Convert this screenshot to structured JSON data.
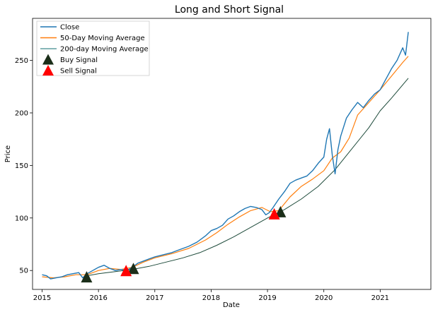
{
  "chart_data": {
    "type": "line",
    "title": "Long and Short Signal",
    "xlabel": "Date",
    "ylabel": "Price",
    "xlim": [
      2014.83,
      2021.9
    ],
    "ylim": [
      32,
      290
    ],
    "x_ticks": [
      "2015",
      "2016",
      "2017",
      "2018",
      "2019",
      "2020",
      "2021"
    ],
    "y_ticks": [
      50,
      100,
      150,
      200,
      250
    ],
    "grid": false,
    "legend_position": "top-left",
    "legend": [
      "Close",
      "50-Day Moving Average",
      "200-day Moving Average",
      "Buy Signal",
      "Sell Signal"
    ],
    "series": [
      {
        "name": "Close",
        "color": "#1f77b4",
        "x": [
          2015.0,
          2015.08,
          2015.15,
          2015.25,
          2015.35,
          2015.45,
          2015.55,
          2015.65,
          2015.72,
          2015.8,
          2015.9,
          2016.0,
          2016.1,
          2016.2,
          2016.3,
          2016.4,
          2016.5,
          2016.6,
          2016.7,
          2016.8,
          2016.9,
          2017.0,
          2017.15,
          2017.3,
          2017.45,
          2017.6,
          2017.75,
          2017.9,
          2018.0,
          2018.1,
          2018.2,
          2018.3,
          2018.4,
          2018.5,
          2018.6,
          2018.7,
          2018.8,
          2018.9,
          2018.97,
          2019.03,
          2019.1,
          2019.2,
          2019.3,
          2019.4,
          2019.5,
          2019.6,
          2019.7,
          2019.8,
          2019.9,
          2020.0,
          2020.05,
          2020.1,
          2020.15,
          2020.2,
          2020.25,
          2020.3,
          2020.4,
          2020.5,
          2020.6,
          2020.7,
          2020.8,
          2020.9,
          2021.0,
          2021.1,
          2021.2,
          2021.3,
          2021.4,
          2021.45,
          2021.5
        ],
        "values": [
          46,
          45,
          42,
          43,
          44,
          46,
          47,
          48,
          43,
          47,
          50,
          53,
          55,
          52,
          50,
          51,
          50,
          53,
          57,
          59,
          61,
          63,
          65,
          67,
          70,
          73,
          77,
          83,
          88,
          90,
          93,
          99,
          102,
          106,
          109,
          111,
          110,
          108,
          103,
          105,
          110,
          118,
          125,
          133,
          136,
          138,
          140,
          145,
          152,
          158,
          175,
          185,
          160,
          142,
          165,
          178,
          195,
          203,
          210,
          205,
          212,
          218,
          222,
          232,
          242,
          250,
          262,
          255,
          277
        ]
      },
      {
        "name": "50-Day Moving Average",
        "color": "#ff7f0e",
        "x": [
          2015.0,
          2015.2,
          2015.4,
          2015.6,
          2015.8,
          2016.0,
          2016.2,
          2016.4,
          2016.6,
          2016.8,
          2017.0,
          2017.3,
          2017.6,
          2017.9,
          2018.1,
          2018.3,
          2018.5,
          2018.7,
          2018.9,
          2019.05,
          2019.2,
          2019.4,
          2019.6,
          2019.8,
          2020.0,
          2020.15,
          2020.3,
          2020.45,
          2020.6,
          2020.8,
          2021.0,
          2021.2,
          2021.4,
          2021.5
        ],
        "values": [
          44,
          43,
          44,
          46,
          46,
          50,
          52,
          51,
          53,
          58,
          62,
          66,
          71,
          79,
          86,
          94,
          101,
          107,
          110,
          106,
          107,
          120,
          130,
          137,
          145,
          157,
          163,
          176,
          198,
          210,
          222,
          235,
          248,
          254
        ]
      },
      {
        "name": "200-day Moving Average",
        "color": "#1d4a3a",
        "x": [
          2015.8,
          2016.0,
          2016.3,
          2016.6,
          2016.9,
          2017.2,
          2017.5,
          2017.8,
          2018.1,
          2018.4,
          2018.7,
          2019.0,
          2019.3,
          2019.6,
          2019.9,
          2020.2,
          2020.5,
          2020.8,
          2021.0,
          2021.2,
          2021.5
        ],
        "values": [
          45,
          47,
          49,
          51,
          54,
          58,
          62,
          67,
          74,
          82,
          91,
          100,
          108,
          118,
          130,
          146,
          166,
          186,
          202,
          214,
          233
        ]
      }
    ],
    "buy_signals": {
      "name": "Buy Signal",
      "color": "#1b2e19",
      "x": [
        2015.79,
        2016.62,
        2019.23
      ],
      "values": [
        44,
        52,
        106
      ]
    },
    "sell_signals": {
      "name": "Sell Signal",
      "color": "#ff0000",
      "x": [
        2016.49,
        2019.12
      ],
      "values": [
        50,
        104
      ]
    }
  }
}
